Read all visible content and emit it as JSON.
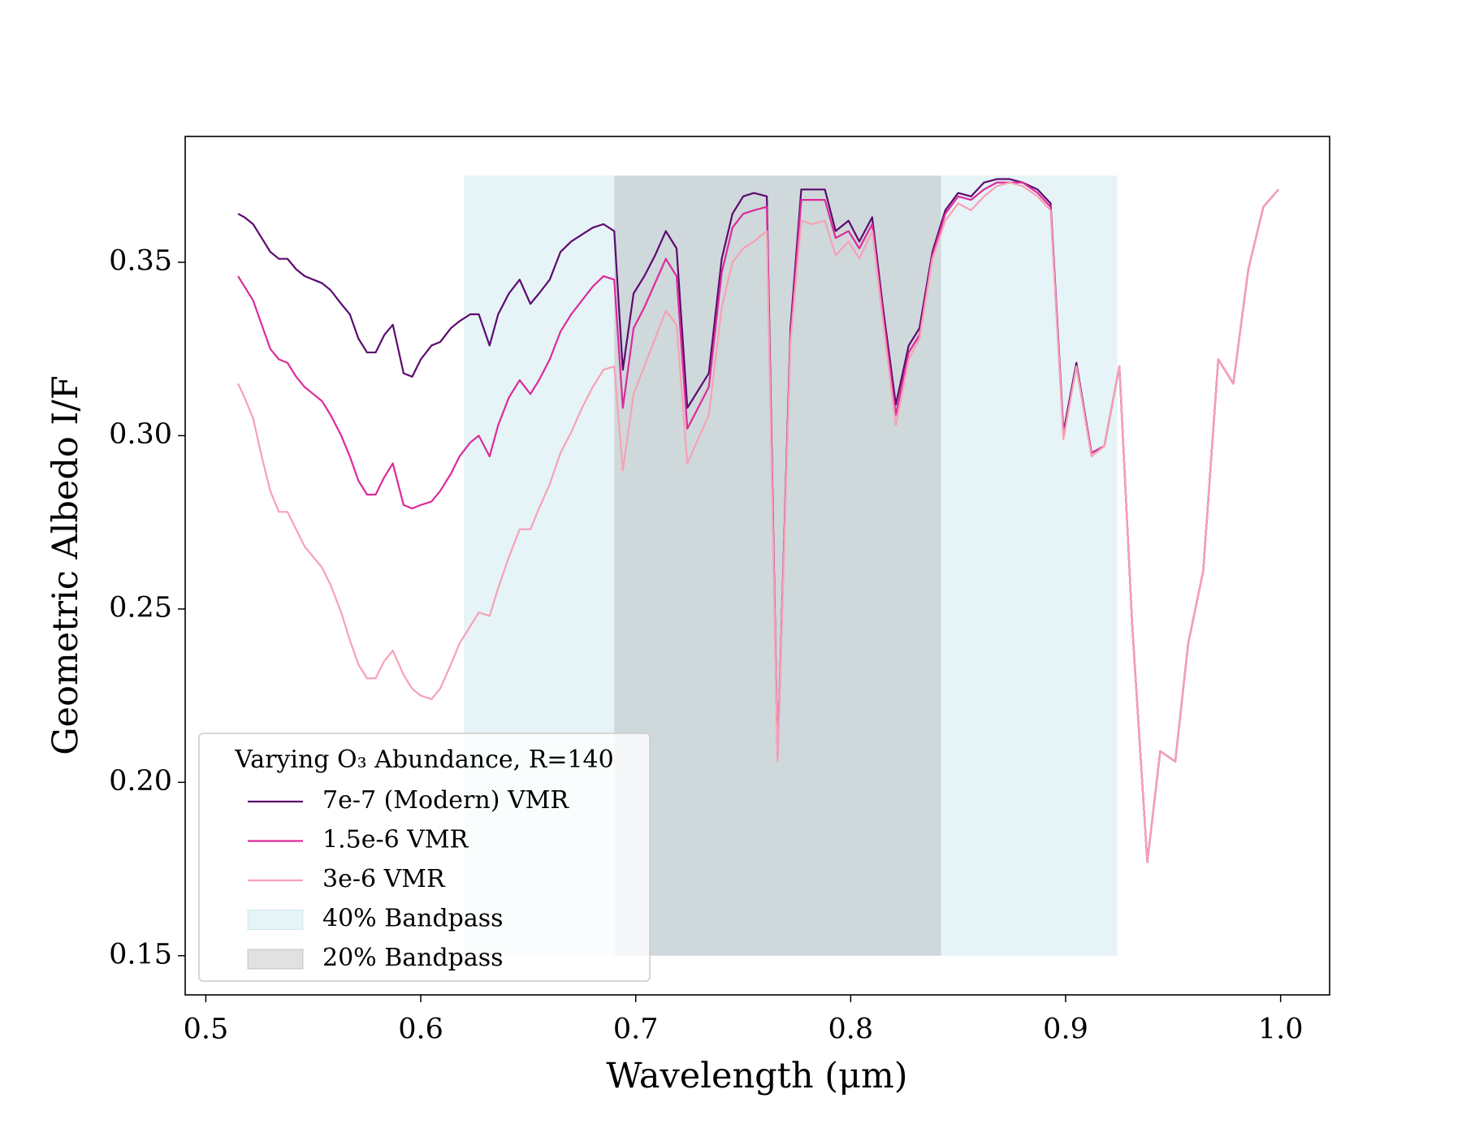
{
  "chart_data": {
    "type": "line",
    "xlabel": "Wavelength (μm)",
    "ylabel": "Geometric Albedo I/F",
    "legend_title": "Varying O₃ Abundance, R=140",
    "legend": "lower left",
    "xlim": [
      0.4904,
      1.0228
    ],
    "ylim": [
      0.1387,
      0.3863
    ],
    "xticks": [
      0.5,
      0.6,
      0.7,
      0.8,
      0.9,
      {
        "value": 1,
        "label": "1.0"
      }
    ],
    "yticks": [
      0.15,
      {
        "value": 0.2,
        "label": "0.20"
      },
      0.25,
      {
        "value": 0.3,
        "label": "0.30"
      },
      0.35
    ],
    "x": [
      0.515,
      0.518,
      0.522,
      0.526,
      0.53,
      0.534,
      0.538,
      0.542,
      0.546,
      0.55,
      0.554,
      0.558,
      0.563,
      0.567,
      0.571,
      0.575,
      0.579,
      0.583,
      0.587,
      0.592,
      0.596,
      0.6,
      0.605,
      0.609,
      0.614,
      0.618,
      0.623,
      0.627,
      0.632,
      0.636,
      0.641,
      0.646,
      0.651,
      0.655,
      0.66,
      0.665,
      0.67,
      0.675,
      0.68,
      0.685,
      0.69,
      0.694,
      0.699,
      0.704,
      0.709,
      0.714,
      0.719,
      0.724,
      0.729,
      0.734,
      0.74,
      0.745,
      0.75,
      0.755,
      0.761,
      0.766,
      0.772,
      0.777,
      0.782,
      0.788,
      0.793,
      0.799,
      0.804,
      0.81,
      0.815,
      0.821,
      0.827,
      0.832,
      0.838,
      0.844,
      0.85,
      0.856,
      0.862,
      0.868,
      0.874,
      0.88,
      0.887,
      0.893,
      0.899,
      0.905,
      0.912,
      0.918,
      0.925,
      0.931,
      0.938,
      0.944,
      0.951,
      0.957,
      0.964,
      0.971,
      0.978,
      0.985,
      0.992,
      0.999
    ],
    "series": [
      {
        "name": "7e-7 (Modern) VMR",
        "color": "#5c0a6e",
        "values": [
          0.364,
          0.363,
          0.361,
          0.357,
          0.353,
          0.351,
          0.351,
          0.348,
          0.346,
          0.345,
          0.344,
          0.342,
          0.338,
          0.335,
          0.328,
          0.324,
          0.324,
          0.329,
          0.332,
          0.318,
          0.317,
          0.322,
          0.326,
          0.327,
          0.331,
          0.333,
          0.335,
          0.335,
          0.326,
          0.335,
          0.341,
          0.345,
          0.338,
          0.341,
          0.345,
          0.353,
          0.356,
          0.358,
          0.36,
          0.361,
          0.359,
          0.319,
          0.341,
          0.346,
          0.352,
          0.359,
          0.354,
          0.308,
          0.313,
          0.318,
          0.351,
          0.364,
          0.369,
          0.37,
          0.369,
          0.207,
          0.331,
          0.371,
          0.371,
          0.371,
          0.359,
          0.362,
          0.356,
          0.363,
          0.337,
          0.309,
          0.326,
          0.331,
          0.353,
          0.365,
          0.37,
          0.369,
          0.373,
          0.374,
          0.374,
          0.373,
          0.371,
          0.367,
          0.301,
          0.321,
          0.295,
          0.297,
          0.32,
          0.245,
          0.177,
          0.209,
          0.206,
          0.24,
          0.261,
          0.322,
          0.315,
          0.348,
          0.366,
          0.371
        ]
      },
      {
        "name": "1.5e-6 VMR",
        "color": "#dd2a9a",
        "values": [
          0.346,
          0.343,
          0.339,
          0.332,
          0.325,
          0.322,
          0.321,
          0.317,
          0.314,
          0.312,
          0.31,
          0.306,
          0.3,
          0.294,
          0.287,
          0.283,
          0.283,
          0.288,
          0.292,
          0.28,
          0.279,
          0.28,
          0.281,
          0.284,
          0.289,
          0.294,
          0.298,
          0.3,
          0.294,
          0.303,
          0.311,
          0.316,
          0.312,
          0.316,
          0.322,
          0.33,
          0.335,
          0.339,
          0.343,
          0.346,
          0.345,
          0.308,
          0.331,
          0.337,
          0.344,
          0.351,
          0.346,
          0.302,
          0.308,
          0.314,
          0.347,
          0.36,
          0.364,
          0.365,
          0.366,
          0.207,
          0.329,
          0.368,
          0.368,
          0.368,
          0.357,
          0.359,
          0.354,
          0.361,
          0.335,
          0.306,
          0.324,
          0.329,
          0.352,
          0.364,
          0.369,
          0.368,
          0.371,
          0.373,
          0.373,
          0.373,
          0.37,
          0.366,
          0.3,
          0.32,
          0.295,
          0.297,
          0.32,
          0.245,
          0.177,
          0.209,
          0.206,
          0.24,
          0.261,
          0.322,
          0.315,
          0.348,
          0.366,
          0.371
        ]
      },
      {
        "name": "3e-6 VMR",
        "color": "#f7a1b5",
        "values": [
          0.315,
          0.311,
          0.305,
          0.294,
          0.284,
          0.278,
          0.278,
          0.273,
          0.268,
          0.265,
          0.262,
          0.257,
          0.249,
          0.241,
          0.234,
          0.23,
          0.23,
          0.235,
          0.238,
          0.231,
          0.227,
          0.225,
          0.224,
          0.227,
          0.234,
          0.24,
          0.245,
          0.249,
          0.248,
          0.256,
          0.265,
          0.273,
          0.273,
          0.279,
          0.286,
          0.295,
          0.301,
          0.308,
          0.314,
          0.319,
          0.32,
          0.29,
          0.312,
          0.32,
          0.328,
          0.336,
          0.332,
          0.292,
          0.299,
          0.306,
          0.337,
          0.35,
          0.354,
          0.356,
          0.359,
          0.206,
          0.327,
          0.362,
          0.361,
          0.362,
          0.352,
          0.356,
          0.351,
          0.359,
          0.333,
          0.303,
          0.322,
          0.328,
          0.351,
          0.362,
          0.367,
          0.365,
          0.369,
          0.372,
          0.373,
          0.372,
          0.369,
          0.365,
          0.299,
          0.32,
          0.294,
          0.297,
          0.32,
          0.245,
          0.177,
          0.209,
          0.206,
          0.24,
          0.261,
          0.322,
          0.315,
          0.348,
          0.366,
          0.371
        ]
      }
    ],
    "bands": [
      {
        "name": "40% Bandpass",
        "color": "#add8e6",
        "x": [
          0.62,
          0.924
        ],
        "y": [
          0.15,
          0.375
        ]
      },
      {
        "name": "20% Bandpass",
        "color": "#9a9a9a",
        "x": [
          0.69,
          0.842
        ],
        "y": [
          0.15,
          0.375
        ]
      }
    ]
  }
}
